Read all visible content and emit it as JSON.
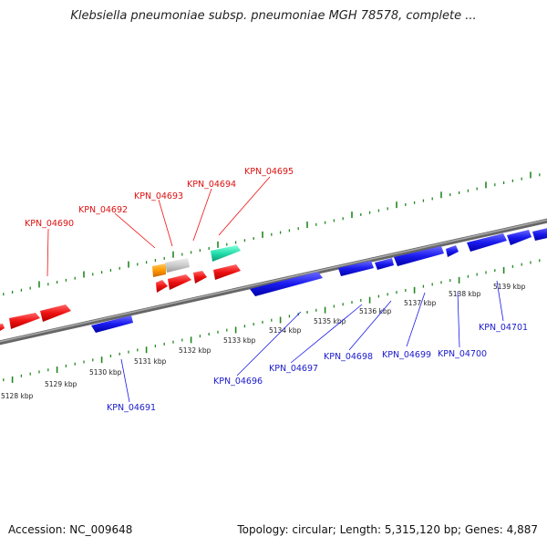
{
  "title": "Klebsiella pneumoniae subsp. pneumoniae MGH 78578, complete ...",
  "footer": {
    "accession": "Accession: NC_009648",
    "summary": "Topology: circular; Length: 5,315,120 bp; Genes: 4,887"
  },
  "colors": {
    "forward": "#ee1111",
    "reverse": "#1a1aee",
    "rna": "#22ddaa",
    "pseudo": "#cccccc",
    "other": "#ff9900",
    "ruler": "#228822",
    "backbone": "#888888"
  },
  "ruler": {
    "unit": "kbp",
    "labels": [
      "5128 kbp",
      "5129 kbp",
      "5130 kbp",
      "5131 kbp",
      "5132 kbp",
      "5133 kbp",
      "5134 kbp",
      "5135 kbp",
      "5136 kbp",
      "5137 kbp",
      "5138 kbp",
      "5139 kbp"
    ]
  },
  "genes": [
    {
      "id": "KPN_04690",
      "strand": "+",
      "type": "forward",
      "labeled": true
    },
    {
      "id": "KPN_04691",
      "strand": "-",
      "type": "reverse",
      "labeled": true
    },
    {
      "id": "KPN_04692",
      "strand": "+",
      "type": "other",
      "labeled": true
    },
    {
      "id": "KPN_04693",
      "strand": "+",
      "type": "forward",
      "labeled": true
    },
    {
      "id": "KPN_04694",
      "strand": "+",
      "type": "forward",
      "labeled": true
    },
    {
      "id": "KPN_04695",
      "strand": "+",
      "type": "rna",
      "labeled": true
    },
    {
      "id": "KPN_04696",
      "strand": "-",
      "type": "reverse",
      "labeled": true
    },
    {
      "id": "KPN_04697",
      "strand": "-",
      "type": "reverse",
      "labeled": true
    },
    {
      "id": "KPN_04698",
      "strand": "-",
      "type": "reverse",
      "labeled": true
    },
    {
      "id": "KPN_04699",
      "strand": "-",
      "type": "reverse",
      "labeled": true
    },
    {
      "id": "KPN_04700",
      "strand": "-",
      "type": "reverse",
      "labeled": true
    },
    {
      "id": "KPN_04701",
      "strand": "-",
      "type": "reverse",
      "labeled": true
    }
  ]
}
